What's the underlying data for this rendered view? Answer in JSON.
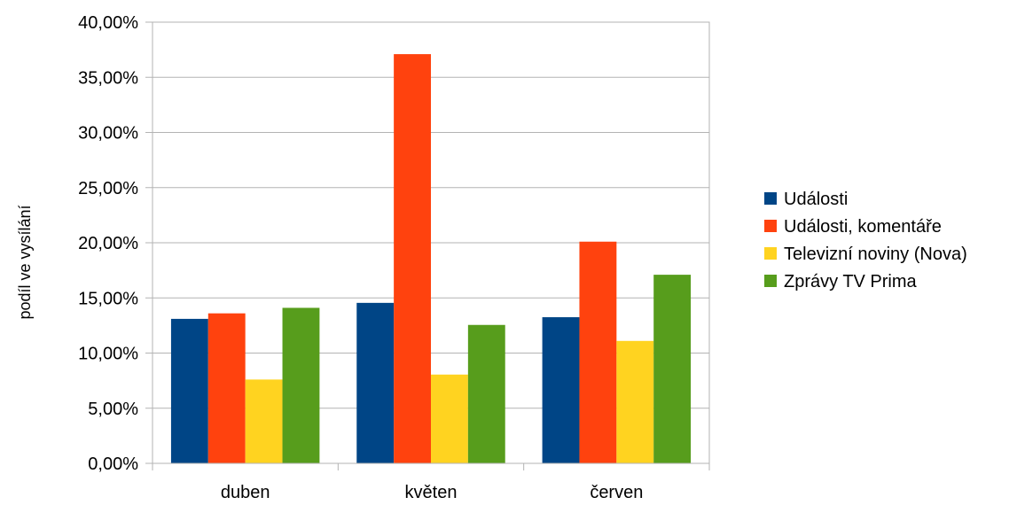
{
  "chart_data": {
    "type": "bar",
    "title": "",
    "xlabel": "",
    "ylabel": "podíl ve vysílání",
    "categories": [
      "duben",
      "květen",
      "červen"
    ],
    "series": [
      {
        "name": "Události",
        "color": "#004586",
        "values": [
          13.1,
          14.55,
          13.25
        ]
      },
      {
        "name": "Události, komentáře",
        "color": "#ff420e",
        "values": [
          13.6,
          37.1,
          20.1
        ]
      },
      {
        "name": "Televizní noviny (Nova)",
        "color": "#ffd320",
        "values": [
          7.6,
          8.05,
          11.1
        ]
      },
      {
        "name": "Zprávy TV Prima",
        "color": "#579d1c",
        "values": [
          14.1,
          12.55,
          17.1
        ]
      }
    ],
    "ylim": [
      0,
      40
    ],
    "yticks": [
      0,
      5,
      10,
      15,
      20,
      25,
      30,
      35,
      40
    ],
    "ytick_labels": [
      "0,00%",
      "5,00%",
      "10,00%",
      "15,00%",
      "20,00%",
      "25,00%",
      "30,00%",
      "35,00%",
      "40,00%"
    ],
    "grid": true,
    "legend_position": "right"
  }
}
